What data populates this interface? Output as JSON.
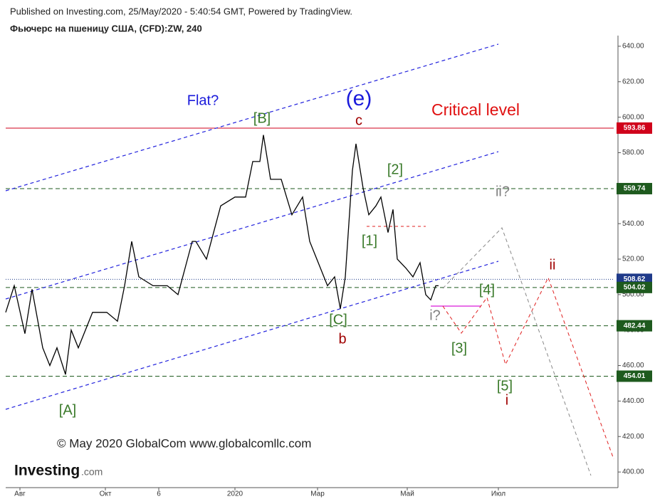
{
  "header": {
    "published": "Published on Investing.com, 25/May/2020 - 5:40:54 GMT, Powered by TradingView.",
    "instrument": "Фьючерс на пшеницу США, (CFD):ZW, 240"
  },
  "chart_data": {
    "type": "line",
    "series": [
      {
        "name": "ZW",
        "color": "#000000",
        "x": [
          0,
          6,
          13.5,
          18.5,
          26,
          31,
          36,
          42,
          46,
          51,
          61,
          71,
          78.5,
          83.5,
          88.5,
          93.5,
          103.5,
          113.5,
          121,
          126,
          131,
          133.5,
          141,
          146,
          151,
          161,
          168.5,
          173.5,
          178.5,
          181,
          186,
          193.5,
          201,
          208.5,
          213.5,
          218.5,
          226,
          231,
          235,
          238.5,
          241,
          243.5,
          246,
          251,
          255,
          260,
          263.5,
          268.5,
          272,
          275,
          281,
          286,
          291,
          295,
          298.5,
          302,
          304
        ],
        "values": [
          490,
          505,
          478,
          503,
          470,
          460,
          470,
          455,
          480,
          470,
          490,
          490,
          485,
          505,
          530,
          510,
          505,
          505,
          500,
          515,
          530,
          530,
          520,
          535,
          550,
          555,
          555,
          575,
          575,
          590,
          565,
          565,
          545,
          555,
          530,
          520,
          505,
          510,
          492,
          510,
          540,
          570,
          585,
          560,
          545,
          550,
          555,
          535,
          548,
          520,
          515,
          510,
          518,
          500,
          497,
          505,
          505
        ]
      }
    ],
    "xlim": [
      0,
      430
    ],
    "xticks": [
      {
        "value": 10,
        "label": "Авг"
      },
      {
        "value": 70,
        "label": "Окт"
      },
      {
        "value": 107.5,
        "label": "6"
      },
      {
        "value": 161,
        "label": "2020"
      },
      {
        "value": 219,
        "label": "Мар"
      },
      {
        "value": 282,
        "label": "Май"
      },
      {
        "value": 346,
        "label": "Июл"
      }
    ],
    "ylim": [
      391.2,
      646
    ],
    "yticks": [
      {
        "value": 400,
        "label": "400.00"
      },
      {
        "value": 420,
        "label": "420.00"
      },
      {
        "value": 440,
        "label": "440.00"
      },
      {
        "value": 460,
        "label": "460.00"
      },
      {
        "value": 480,
        "label": "480.00"
      },
      {
        "value": 500,
        "label": "500.00"
      },
      {
        "value": 520,
        "label": "520.00"
      },
      {
        "value": 540,
        "label": "540.00"
      },
      {
        "value": 560,
        "label": "560.00"
      },
      {
        "value": 580,
        "label": "580.00"
      },
      {
        "value": 600,
        "label": "600.00"
      },
      {
        "value": 620,
        "label": "620.00"
      },
      {
        "value": 640,
        "label": "640.00"
      }
    ],
    "levels": [
      {
        "value": 593.86,
        "color": "#d0021b",
        "style": "solid"
      },
      {
        "value": 559.74,
        "color": "#1e5a1e",
        "style": "dashed"
      },
      {
        "value": 508.62,
        "color": "#1f3a8a",
        "style": "dotted"
      },
      {
        "value": 504.02,
        "color": "#1e5a1e",
        "style": "dashed"
      },
      {
        "value": 482.44,
        "color": "#1e5a1e",
        "style": "dashed"
      },
      {
        "value": 454.01,
        "color": "#1e5a1e",
        "style": "dashed"
      }
    ],
    "annotations": [
      {
        "text": "Flat?",
        "color": "#1a1adb"
      },
      {
        "text": "(e)",
        "color": "#1a1adb"
      },
      {
        "text": "c",
        "color": "#a00000"
      },
      {
        "text": "Critical level",
        "color": "#e01010"
      },
      {
        "text": "[B]",
        "color": "#3a7a2a"
      },
      {
        "text": "[2]",
        "color": "#3a7a2a"
      },
      {
        "text": "[1]",
        "color": "#3a7a2a"
      },
      {
        "text": "[C]",
        "color": "#3a7a2a"
      },
      {
        "text": "b",
        "color": "#a00000"
      },
      {
        "text": "[A]",
        "color": "#3a7a2a"
      },
      {
        "text": "ii?",
        "color": "#808080"
      },
      {
        "text": "i?",
        "color": "#808080"
      },
      {
        "text": "[4]",
        "color": "#3a7a2a"
      },
      {
        "text": "[3]",
        "color": "#3a7a2a"
      },
      {
        "text": "[5]",
        "color": "#3a7a2a"
      },
      {
        "text": "i",
        "color": "#a00000"
      },
      {
        "text": "ii",
        "color": "#a00000"
      }
    ]
  },
  "footer": {
    "copyright": "© May 2020 GlobalCom www.globalcomllc.com",
    "logo": "Investing",
    "logo_suffix": ".com"
  }
}
